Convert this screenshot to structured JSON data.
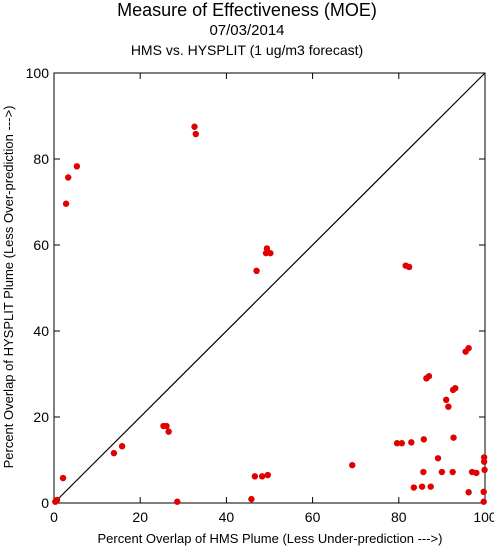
{
  "header": {
    "title": "Measure of Effectiveness (MOE)",
    "date": "07/03/2014",
    "subtitle": "HMS vs. HYSPLIT  (1 ug/m3 forecast)"
  },
  "chart_data": {
    "type": "scatter",
    "title": "Measure of Effectiveness (MOE)",
    "subtitle": "HMS vs. HYSPLIT  (1 ug/m3 forecast)",
    "xlabel": "Percent Overlap of HMS Plume (Less Under-prediction --->)",
    "ylabel": "Percent Overlap of HYSPLIT Plume (Less Over-prediction --->)",
    "xlim": [
      0,
      100
    ],
    "ylim": [
      0,
      100
    ],
    "x_ticks": [
      "0",
      "20",
      "40",
      "60",
      "80",
      "100"
    ],
    "y_ticks": [
      "0",
      "20",
      "40",
      "60",
      "80",
      "100"
    ],
    "reference_line": "diagonal y = x",
    "point_color": "#e00000",
    "points": [
      [
        0.3,
        0.3
      ],
      [
        0.7,
        0.7
      ],
      [
        2.1,
        5.8
      ],
      [
        2.8,
        69.6
      ],
      [
        3.3,
        75.7
      ],
      [
        5.3,
        78.3
      ],
      [
        13.9,
        11.6
      ],
      [
        15.8,
        13.2
      ],
      [
        25.4,
        17.9
      ],
      [
        26.1,
        17.9
      ],
      [
        26.6,
        16.6
      ],
      [
        28.6,
        0.3
      ],
      [
        32.6,
        87.5
      ],
      [
        32.9,
        85.8
      ],
      [
        45.8,
        0.9
      ],
      [
        46.6,
        6.2
      ],
      [
        47.0,
        54.0
      ],
      [
        48.3,
        6.2
      ],
      [
        49.2,
        58.1
      ],
      [
        49.4,
        59.2
      ],
      [
        49.6,
        6.5
      ],
      [
        50.2,
        58.1
      ],
      [
        69.2,
        8.8
      ],
      [
        79.6,
        13.9
      ],
      [
        80.7,
        13.9
      ],
      [
        81.6,
        55.2
      ],
      [
        82.4,
        54.9
      ],
      [
        82.9,
        14.1
      ],
      [
        83.5,
        3.6
      ],
      [
        85.4,
        3.8
      ],
      [
        85.7,
        7.2
      ],
      [
        85.8,
        14.8
      ],
      [
        86.4,
        29.0
      ],
      [
        87.0,
        29.5
      ],
      [
        87.4,
        3.8
      ],
      [
        89.1,
        10.4
      ],
      [
        90.0,
        7.2
      ],
      [
        91.0,
        24.0
      ],
      [
        91.5,
        22.4
      ],
      [
        92.5,
        7.2
      ],
      [
        92.6,
        26.3
      ],
      [
        92.7,
        15.2
      ],
      [
        93.1,
        26.7
      ],
      [
        95.5,
        35.2
      ],
      [
        96.2,
        36.0
      ],
      [
        96.2,
        2.5
      ],
      [
        97.0,
        7.2
      ],
      [
        98.0,
        7.0
      ],
      [
        99.7,
        0.3
      ],
      [
        99.7,
        2.6
      ],
      [
        99.8,
        9.6
      ],
      [
        99.8,
        10.6
      ],
      [
        99.9,
        7.7
      ]
    ]
  }
}
